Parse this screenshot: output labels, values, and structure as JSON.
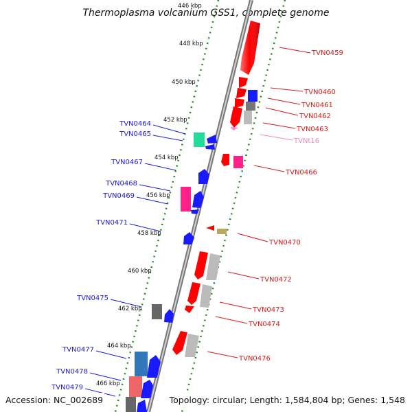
{
  "title": "Thermoplasma volcanium GSS1, complete genome",
  "accession": "Accession: NC_002689",
  "topology": "Topology: circular; Length: 1,584,804 bp; Genes: 1,548",
  "colors": {
    "backbone": "#8c8c8c",
    "ticks": "#1e8c1e",
    "left_label": "#1a1ad8",
    "right_label": "#d81a1a",
    "trna_label": "#ee88bb"
  },
  "kbp_labels": [
    "446 kbp",
    "448 kbp",
    "450 kbp",
    "452 kbp",
    "454 kbp",
    "456 kbp",
    "458 kbp",
    "460 kbp",
    "462 kbp",
    "464 kbp",
    "466 kbp"
  ],
  "genes_right": [
    {
      "id": "TVN0459",
      "color": "#ff0000",
      "strand": "forward"
    },
    {
      "id": "TVN0460",
      "color": "#ff0000",
      "strand": "forward"
    },
    {
      "id": "TVN0461",
      "color": "#1a1aff",
      "strand": "forward"
    },
    {
      "id": "TVN0462",
      "color": "#777777",
      "strand": "forward"
    },
    {
      "id": "TVN0463",
      "color": "#bbbbbb",
      "strand": "forward"
    },
    {
      "id": "TVNt16",
      "color": "#ff88cc",
      "strand": "forward"
    },
    {
      "id": "TVN0466",
      "color": "#ff2288",
      "strand": "forward"
    },
    {
      "id": "TVN0470",
      "color": "#b8a860",
      "strand": "forward"
    },
    {
      "id": "TVN0472",
      "color": "#bbbbbb",
      "strand": "forward"
    },
    {
      "id": "TVN0473",
      "color": "#bbbbbb",
      "strand": "forward"
    },
    {
      "id": "TVN0474",
      "color": "#ff0000",
      "strand": "forward"
    },
    {
      "id": "TVN0476",
      "color": "#bbbbbb",
      "strand": "forward"
    }
  ],
  "genes_left": [
    {
      "id": "TVN0464",
      "color": "#22dd99",
      "strand": "reverse"
    },
    {
      "id": "TVN0465",
      "color": "#1a1aff",
      "strand": "reverse"
    },
    {
      "id": "TVN0467",
      "color": "#1a1aff",
      "strand": "reverse"
    },
    {
      "id": "TVN0468",
      "color": "#ff2288",
      "strand": "reverse"
    },
    {
      "id": "TVN0469",
      "color": "#1a1aff",
      "strand": "reverse"
    },
    {
      "id": "TVN0471",
      "color": "#1a1aff",
      "strand": "reverse"
    },
    {
      "id": "TVN0475",
      "color": "#666666",
      "strand": "reverse"
    },
    {
      "id": "TVN0477",
      "color": "#3377bb",
      "strand": "reverse"
    },
    {
      "id": "TVN0478",
      "color": "#ee6666",
      "strand": "reverse"
    },
    {
      "id": "TVN0479",
      "color": "#666666",
      "strand": "reverse"
    }
  ]
}
